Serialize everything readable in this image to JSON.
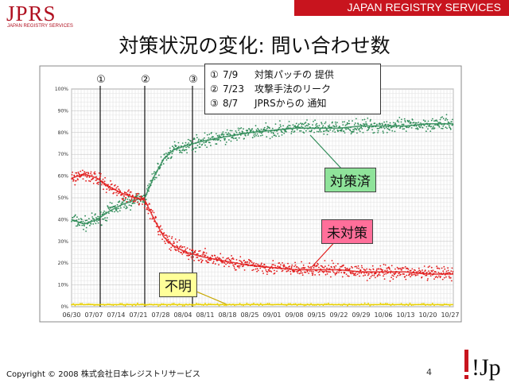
{
  "header": {
    "logo_text": "JPRS",
    "logo_subtext": "JAPAN REGISTRY SERVICES",
    "banner": "JAPAN REGISTRY SERVICES"
  },
  "slide": {
    "title": "対策状況の変化: 問い合わせ数",
    "page_number": "4"
  },
  "footer": {
    "copyright": "Copyright © 2008 株式会社日本レジストリサービス",
    "brand_logo": "!Jp"
  },
  "events_legend": [
    {
      "marker": "①",
      "date": "7/9",
      "text": "対策パッチの 提供"
    },
    {
      "marker": "②",
      "date": "7/23",
      "text": "攻撃手法のリーク"
    },
    {
      "marker": "③",
      "date": "8/7",
      "text": "JPRSからの 通知"
    }
  ],
  "chart_data": {
    "type": "scatter",
    "title": "",
    "xlabel": "",
    "ylabel": "",
    "x_start": "2008-06-30",
    "x_end": "2008-10-28",
    "x_ticks": [
      "06/30",
      "07/07",
      "07/14",
      "07/21",
      "07/28",
      "08/04",
      "08/11",
      "08/18",
      "08/25",
      "09/01",
      "09/08",
      "09/15",
      "09/22",
      "09/29",
      "10/06",
      "10/13",
      "10/20",
      "10/27"
    ],
    "y_ticks": [
      "0%",
      "10%",
      "20%",
      "30%",
      "40%",
      "50%",
      "60%",
      "70%",
      "80%",
      "90%",
      "100%"
    ],
    "ylim": [
      0,
      100
    ],
    "grid": true,
    "event_lines": [
      {
        "label": "①",
        "date": "2008-07-09"
      },
      {
        "label": "②",
        "date": "2008-07-23"
      },
      {
        "label": "③",
        "date": "2008-08-07"
      }
    ],
    "series": [
      {
        "name": "対策済",
        "color": "#2e8b57",
        "points": [
          {
            "x": "2008-06-30",
            "y": 40
          },
          {
            "x": "2008-07-04",
            "y": 38
          },
          {
            "x": "2008-07-08",
            "y": 40
          },
          {
            "x": "2008-07-12",
            "y": 44
          },
          {
            "x": "2008-07-16",
            "y": 47
          },
          {
            "x": "2008-07-20",
            "y": 49
          },
          {
            "x": "2008-07-23",
            "y": 50
          },
          {
            "x": "2008-07-26",
            "y": 60
          },
          {
            "x": "2008-07-29",
            "y": 68
          },
          {
            "x": "2008-08-01",
            "y": 72
          },
          {
            "x": "2008-08-05",
            "y": 74
          },
          {
            "x": "2008-08-10",
            "y": 76
          },
          {
            "x": "2008-08-17",
            "y": 78
          },
          {
            "x": "2008-08-25",
            "y": 80
          },
          {
            "x": "2008-09-01",
            "y": 81
          },
          {
            "x": "2008-09-08",
            "y": 82
          },
          {
            "x": "2008-09-15",
            "y": 82
          },
          {
            "x": "2008-09-22",
            "y": 82
          },
          {
            "x": "2008-09-29",
            "y": 83
          },
          {
            "x": "2008-10-06",
            "y": 83
          },
          {
            "x": "2008-10-13",
            "y": 83
          },
          {
            "x": "2008-10-20",
            "y": 84
          },
          {
            "x": "2008-10-28",
            "y": 84
          }
        ]
      },
      {
        "name": "未対策",
        "color": "#e21b1b",
        "points": [
          {
            "x": "2008-06-30",
            "y": 59
          },
          {
            "x": "2008-07-04",
            "y": 61
          },
          {
            "x": "2008-07-08",
            "y": 59
          },
          {
            "x": "2008-07-12",
            "y": 55
          },
          {
            "x": "2008-07-16",
            "y": 52
          },
          {
            "x": "2008-07-20",
            "y": 50
          },
          {
            "x": "2008-07-23",
            "y": 49
          },
          {
            "x": "2008-07-26",
            "y": 40
          },
          {
            "x": "2008-07-29",
            "y": 32
          },
          {
            "x": "2008-08-01",
            "y": 28
          },
          {
            "x": "2008-08-05",
            "y": 25
          },
          {
            "x": "2008-08-10",
            "y": 23
          },
          {
            "x": "2008-08-17",
            "y": 21
          },
          {
            "x": "2008-08-25",
            "y": 19
          },
          {
            "x": "2008-09-01",
            "y": 18
          },
          {
            "x": "2008-09-08",
            "y": 17
          },
          {
            "x": "2008-09-15",
            "y": 17
          },
          {
            "x": "2008-09-22",
            "y": 17
          },
          {
            "x": "2008-09-29",
            "y": 16
          },
          {
            "x": "2008-10-06",
            "y": 16
          },
          {
            "x": "2008-10-13",
            "y": 16
          },
          {
            "x": "2008-10-20",
            "y": 15
          },
          {
            "x": "2008-10-28",
            "y": 15
          }
        ]
      },
      {
        "name": "不明",
        "color": "#e8d000",
        "points": [
          {
            "x": "2008-06-30",
            "y": 1
          },
          {
            "x": "2008-07-14",
            "y": 1
          },
          {
            "x": "2008-07-28",
            "y": 1
          },
          {
            "x": "2008-08-11",
            "y": 1
          },
          {
            "x": "2008-08-25",
            "y": 1
          },
          {
            "x": "2008-09-08",
            "y": 1
          },
          {
            "x": "2008-09-22",
            "y": 1
          },
          {
            "x": "2008-10-06",
            "y": 1
          },
          {
            "x": "2008-10-20",
            "y": 1
          },
          {
            "x": "2008-10-28",
            "y": 1
          }
        ]
      }
    ]
  }
}
